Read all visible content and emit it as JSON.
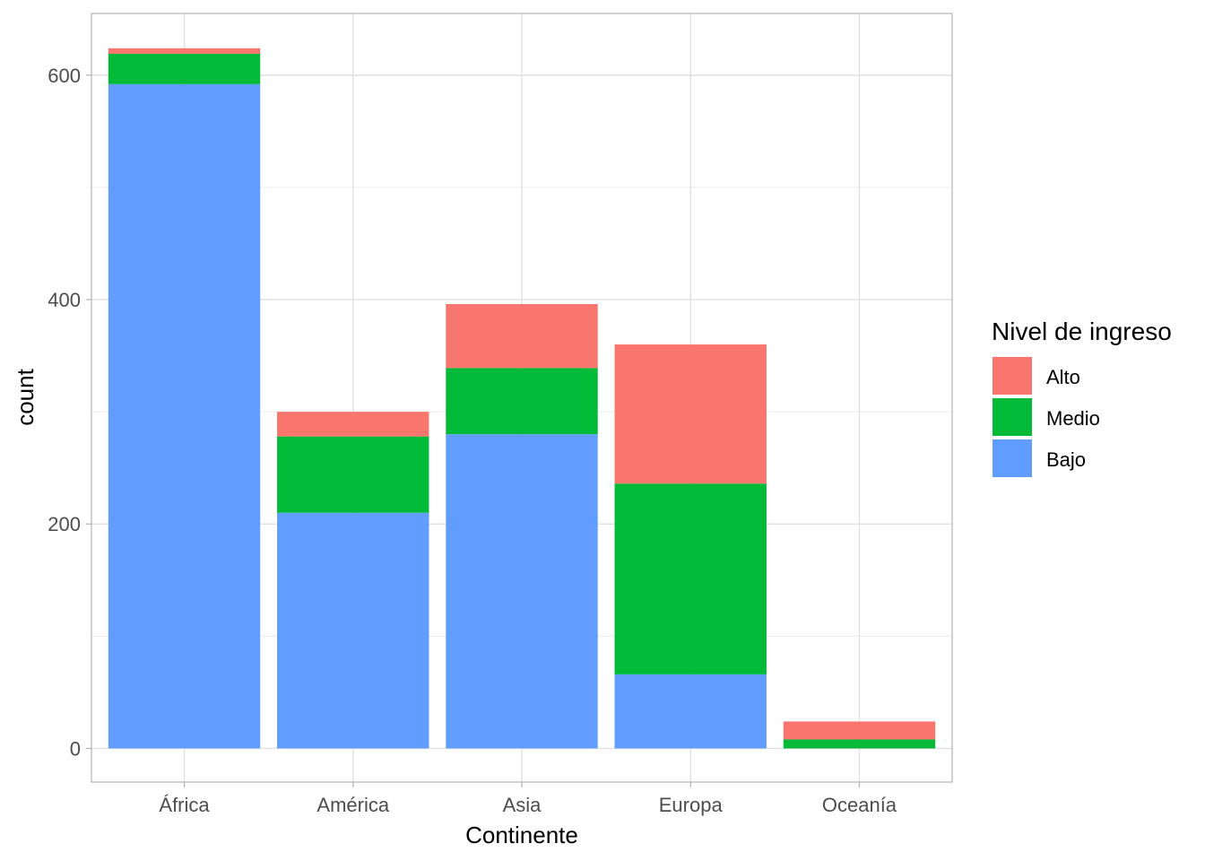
{
  "chart_data": {
    "type": "bar",
    "stacked": true,
    "categories": [
      "África",
      "América",
      "Asia",
      "Europa",
      "Oceanía"
    ],
    "series": [
      {
        "name": "Bajo",
        "color": "#619CFF",
        "values": [
          592,
          210,
          280,
          66,
          0
        ]
      },
      {
        "name": "Medio",
        "color": "#00BA38",
        "values": [
          27,
          68,
          59,
          170,
          8
        ]
      },
      {
        "name": "Alto",
        "color": "#F8766D",
        "values": [
          5,
          22,
          57,
          124,
          16
        ]
      }
    ],
    "xlabel": "Continente",
    "ylabel": "count",
    "ylim": [
      -30,
      655
    ],
    "yticks": [
      0,
      200,
      400,
      600
    ],
    "ytick_labels": [
      "0",
      "200",
      "400",
      "600"
    ],
    "grid": true,
    "legend": {
      "title": "Nivel de ingreso",
      "position": "right",
      "order": [
        "Alto",
        "Medio",
        "Bajo"
      ]
    }
  }
}
